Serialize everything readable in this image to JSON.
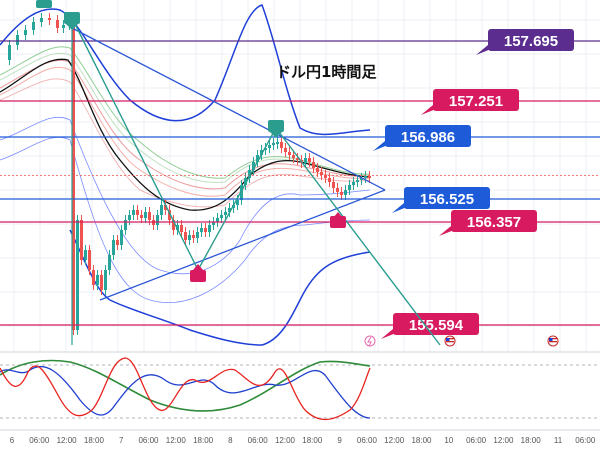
{
  "chart_data": {
    "type": "line",
    "title": "ドル円1時間足",
    "price_levels": [
      {
        "value": 157.695,
        "label": "157.695",
        "color": "#5b2d8e"
      },
      {
        "value": 157.251,
        "label": "157.251",
        "color": "#d81b60"
      },
      {
        "value": 156.986,
        "label": "156.986",
        "color": "#1e5bd8"
      },
      {
        "value": 156.525,
        "label": "156.525",
        "color": "#1e5bd8"
      },
      {
        "value": 156.357,
        "label": "156.357",
        "color": "#d81b60"
      },
      {
        "value": 155.594,
        "label": "155.594",
        "color": "#d81b60"
      }
    ],
    "x_ticks": [
      "6",
      "06:00",
      "12:00",
      "18:00",
      "7",
      "06:00",
      "12:00",
      "18:00",
      "8",
      "06:00",
      "12:00",
      "18:00",
      "9",
      "06:00",
      "12:00",
      "18:00",
      "10",
      "06:00",
      "12:00",
      "18:00",
      "11",
      "06:00"
    ],
    "grid": true,
    "colors": {
      "up": "#26a69a",
      "down": "#ef5350",
      "band": "#1e3fd8",
      "oscRed": "#e8231f",
      "oscBlue": "#2040d0",
      "oscGreen": "#2e8b3a"
    }
  }
}
